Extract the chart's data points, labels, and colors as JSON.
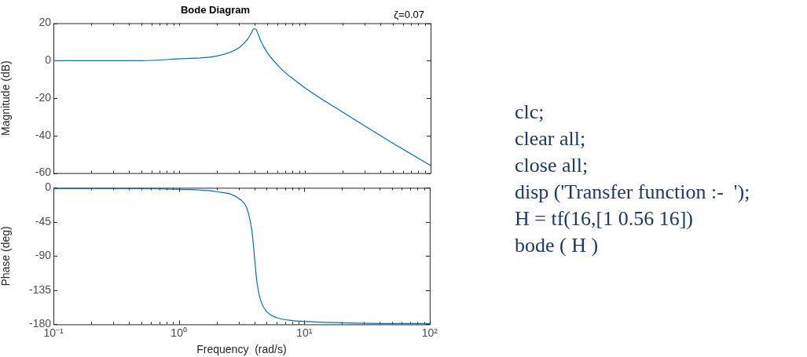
{
  "chart_data": [
    {
      "type": "line",
      "title": "Bode Diagram",
      "ylabel": "Magnitude (dB)",
      "annotations": [
        "ζ=0.07"
      ],
      "color": "#0072bd",
      "log": "x",
      "grid": false,
      "tick_labels": "y",
      "marker": "none",
      "x": [
        0.1,
        0.5,
        1,
        2,
        3,
        3.5,
        3.8,
        3.9,
        4,
        4.1,
        4.2,
        4.5,
        5,
        6,
        7,
        8,
        10,
        20,
        50,
        100
      ],
      "values": [
        0,
        0,
        1,
        2.5,
        7,
        11.5,
        15.5,
        17,
        17,
        16.5,
        15,
        10,
        4.5,
        -2,
        -6.5,
        -9.5,
        -14.5,
        -27.5,
        -44,
        -56
      ],
      "xlim": [
        0.1,
        100
      ],
      "ylim": [
        -60,
        20
      ],
      "yticks": [
        20,
        0,
        -20,
        -40,
        -60
      ],
      "xticks": [
        {
          "value": 0.1,
          "label": null
        },
        {
          "value": 0.2,
          "label": null
        },
        {
          "value": 0.3,
          "label": null
        },
        {
          "value": 0.4,
          "label": null
        },
        {
          "value": 0.5,
          "label": null
        },
        {
          "value": 0.6,
          "label": null
        },
        {
          "value": 0.7,
          "label": null
        },
        {
          "value": 0.8,
          "label": null
        },
        {
          "value": 0.9,
          "label": null
        },
        {
          "value": 1,
          "label": null
        },
        {
          "value": 2,
          "label": null
        },
        {
          "value": 3,
          "label": null
        },
        {
          "value": 4,
          "label": null
        },
        {
          "value": 5,
          "label": null
        },
        {
          "value": 6,
          "label": null
        },
        {
          "value": 7,
          "label": null
        },
        {
          "value": 8,
          "label": null
        },
        {
          "value": 9,
          "label": null
        },
        {
          "value": 10,
          "label": null
        },
        {
          "value": 20,
          "label": null
        },
        {
          "value": 30,
          "label": null
        },
        {
          "value": 40,
          "label": null
        },
        {
          "value": 50,
          "label": null
        },
        {
          "value": 60,
          "label": null
        },
        {
          "value": 70,
          "label": null
        },
        {
          "value": 80,
          "label": null
        },
        {
          "value": 90,
          "label": null
        },
        {
          "value": 100,
          "label": null
        }
      ]
    },
    {
      "type": "line",
      "xlabel": "Frequency  (rad/s)",
      "ylabel": "Phase (deg)",
      "color": "#0072bd",
      "log": "x",
      "grid": false,
      "marker": "none",
      "x": [
        0.1,
        0.5,
        1,
        2,
        3,
        3.5,
        3.8,
        3.9,
        4,
        4.1,
        4.2,
        4.5,
        5,
        6,
        8,
        10,
        20,
        50,
        100
      ],
      "values": [
        -1,
        -1,
        -2,
        -5,
        -14,
        -28,
        -54,
        -70,
        -90,
        -109,
        -125,
        -149,
        -163,
        -171,
        -175,
        -176,
        -178,
        -179,
        -179
      ],
      "xlim": [
        0.1,
        100
      ],
      "ylim": [
        -180,
        0
      ],
      "yticks": [
        0,
        -45,
        -90,
        -135,
        -180
      ],
      "xticks": [
        {
          "value": 0.1,
          "label": "10⁻¹"
        },
        {
          "value": 0.2,
          "label": null
        },
        {
          "value": 0.3,
          "label": null
        },
        {
          "value": 0.4,
          "label": null
        },
        {
          "value": 0.5,
          "label": null
        },
        {
          "value": 0.6,
          "label": null
        },
        {
          "value": 0.7,
          "label": null
        },
        {
          "value": 0.8,
          "label": null
        },
        {
          "value": 0.9,
          "label": null
        },
        {
          "value": 1,
          "label": "10⁰"
        },
        {
          "value": 2,
          "label": null
        },
        {
          "value": 3,
          "label": null
        },
        {
          "value": 4,
          "label": null
        },
        {
          "value": 5,
          "label": null
        },
        {
          "value": 6,
          "label": null
        },
        {
          "value": 7,
          "label": null
        },
        {
          "value": 8,
          "label": null
        },
        {
          "value": 9,
          "label": null
        },
        {
          "value": 10,
          "label": "10¹"
        },
        {
          "value": 20,
          "label": null
        },
        {
          "value": 30,
          "label": null
        },
        {
          "value": 40,
          "label": null
        },
        {
          "value": 50,
          "label": null
        },
        {
          "value": 60,
          "label": null
        },
        {
          "value": 70,
          "label": null
        },
        {
          "value": 80,
          "label": null
        },
        {
          "value": 90,
          "label": null
        },
        {
          "value": 100,
          "label": "10²"
        }
      ]
    },
    {
      "type": "other",
      "annotations": [
        "clc;",
        "clear all;",
        "close all;",
        "disp ('Transfer function :-  ');",
        "H = tf(16,[1 0.56 16])",
        "bode ( H )"
      ]
    }
  ]
}
